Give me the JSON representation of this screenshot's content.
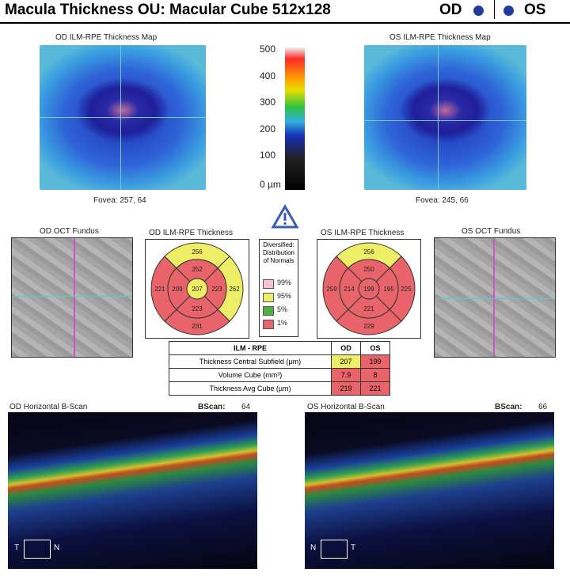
{
  "header": {
    "title": "Macula Thickness OU: Macular Cube 512x128",
    "od": "OD",
    "os": "OS"
  },
  "maps": {
    "od": {
      "title": "OD ILM-RPE Thickness Map",
      "fovea": "Fovea: 257, 64"
    },
    "os": {
      "title": "OS ILM-RPE Thickness Map",
      "fovea": "Fovea: 245, 66"
    },
    "scale": [
      "500",
      "400",
      "300",
      "200",
      "100",
      "0 µm"
    ]
  },
  "fundus": {
    "od": "OD OCT Fundus",
    "os": "OS OCT Fundus"
  },
  "od_grid": {
    "title": "OD ILM-RPE Thickness",
    "center": 207,
    "inner": [
      252,
      223,
      223,
      209
    ],
    "outer": [
      256,
      262,
      231,
      221
    ]
  },
  "os_grid": {
    "title": "OS ILM-RPE Thickness",
    "center": 199,
    "inner": [
      250,
      195,
      221,
      214
    ],
    "outer": [
      256,
      225,
      229,
      259
    ]
  },
  "legend": {
    "title": "Diversified: Distribution of Normals",
    "levels": [
      "99%",
      "95%",
      "5%",
      "1%"
    ]
  },
  "table": {
    "header": [
      "ILM - RPE",
      "OD",
      "OS"
    ],
    "rows": [
      [
        "Thickness Central Subfield (µm)",
        207,
        199
      ],
      [
        "Volume Cube (mm³)",
        7.9,
        8
      ],
      [
        "Thickness Avg Cube (µm)",
        219,
        221
      ]
    ]
  },
  "bscans": {
    "od": {
      "title": "OD Horizontal B-Scan",
      "label": "BScan:",
      "number": 64,
      "left": "T",
      "right": "N"
    },
    "os": {
      "title": "OS Horizontal B-Scan",
      "label": "BScan:",
      "number": 66,
      "left": "N",
      "right": "T"
    }
  }
}
